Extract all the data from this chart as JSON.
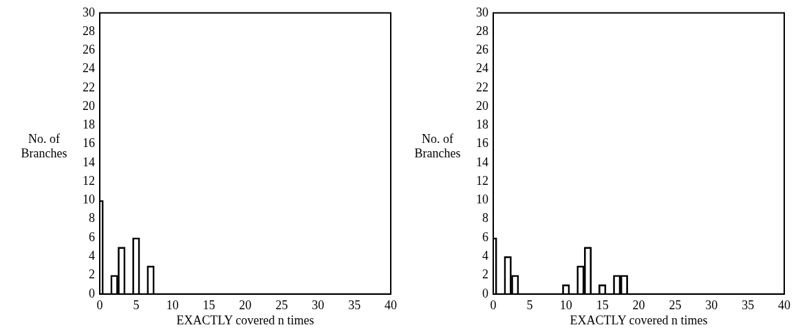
{
  "chart_data": [
    {
      "type": "bar",
      "xlabel": "EXACTLY covered n times",
      "ylabel": "No. of Branches",
      "color": "#000000",
      "x": [
        0,
        2,
        3,
        5,
        7
      ],
      "values": [
        10,
        2,
        5,
        6,
        3
      ],
      "xlim": [
        0,
        40
      ],
      "xticks": [
        0,
        5,
        10,
        15,
        20,
        25,
        30,
        35,
        40
      ],
      "ylim": [
        0,
        30
      ],
      "yticks": [
        0,
        2,
        4,
        6,
        8,
        10,
        12,
        14,
        16,
        18,
        20,
        22,
        24,
        26,
        28,
        30
      ]
    },
    {
      "type": "bar",
      "xlabel": "EXACTLY covered n times",
      "ylabel": "No. of Branches",
      "color": "#000000",
      "x": [
        0,
        2,
        3,
        10,
        12,
        13,
        15,
        17,
        18
      ],
      "values": [
        6,
        4,
        2,
        1,
        3,
        5,
        1,
        2,
        2
      ],
      "xlim": [
        0,
        40
      ],
      "xticks": [
        0,
        5,
        10,
        15,
        20,
        25,
        30,
        35,
        40
      ],
      "ylim": [
        0,
        30
      ],
      "yticks": [
        0,
        2,
        4,
        6,
        8,
        10,
        12,
        14,
        16,
        18,
        20,
        22,
        24,
        26,
        28,
        30
      ]
    }
  ]
}
